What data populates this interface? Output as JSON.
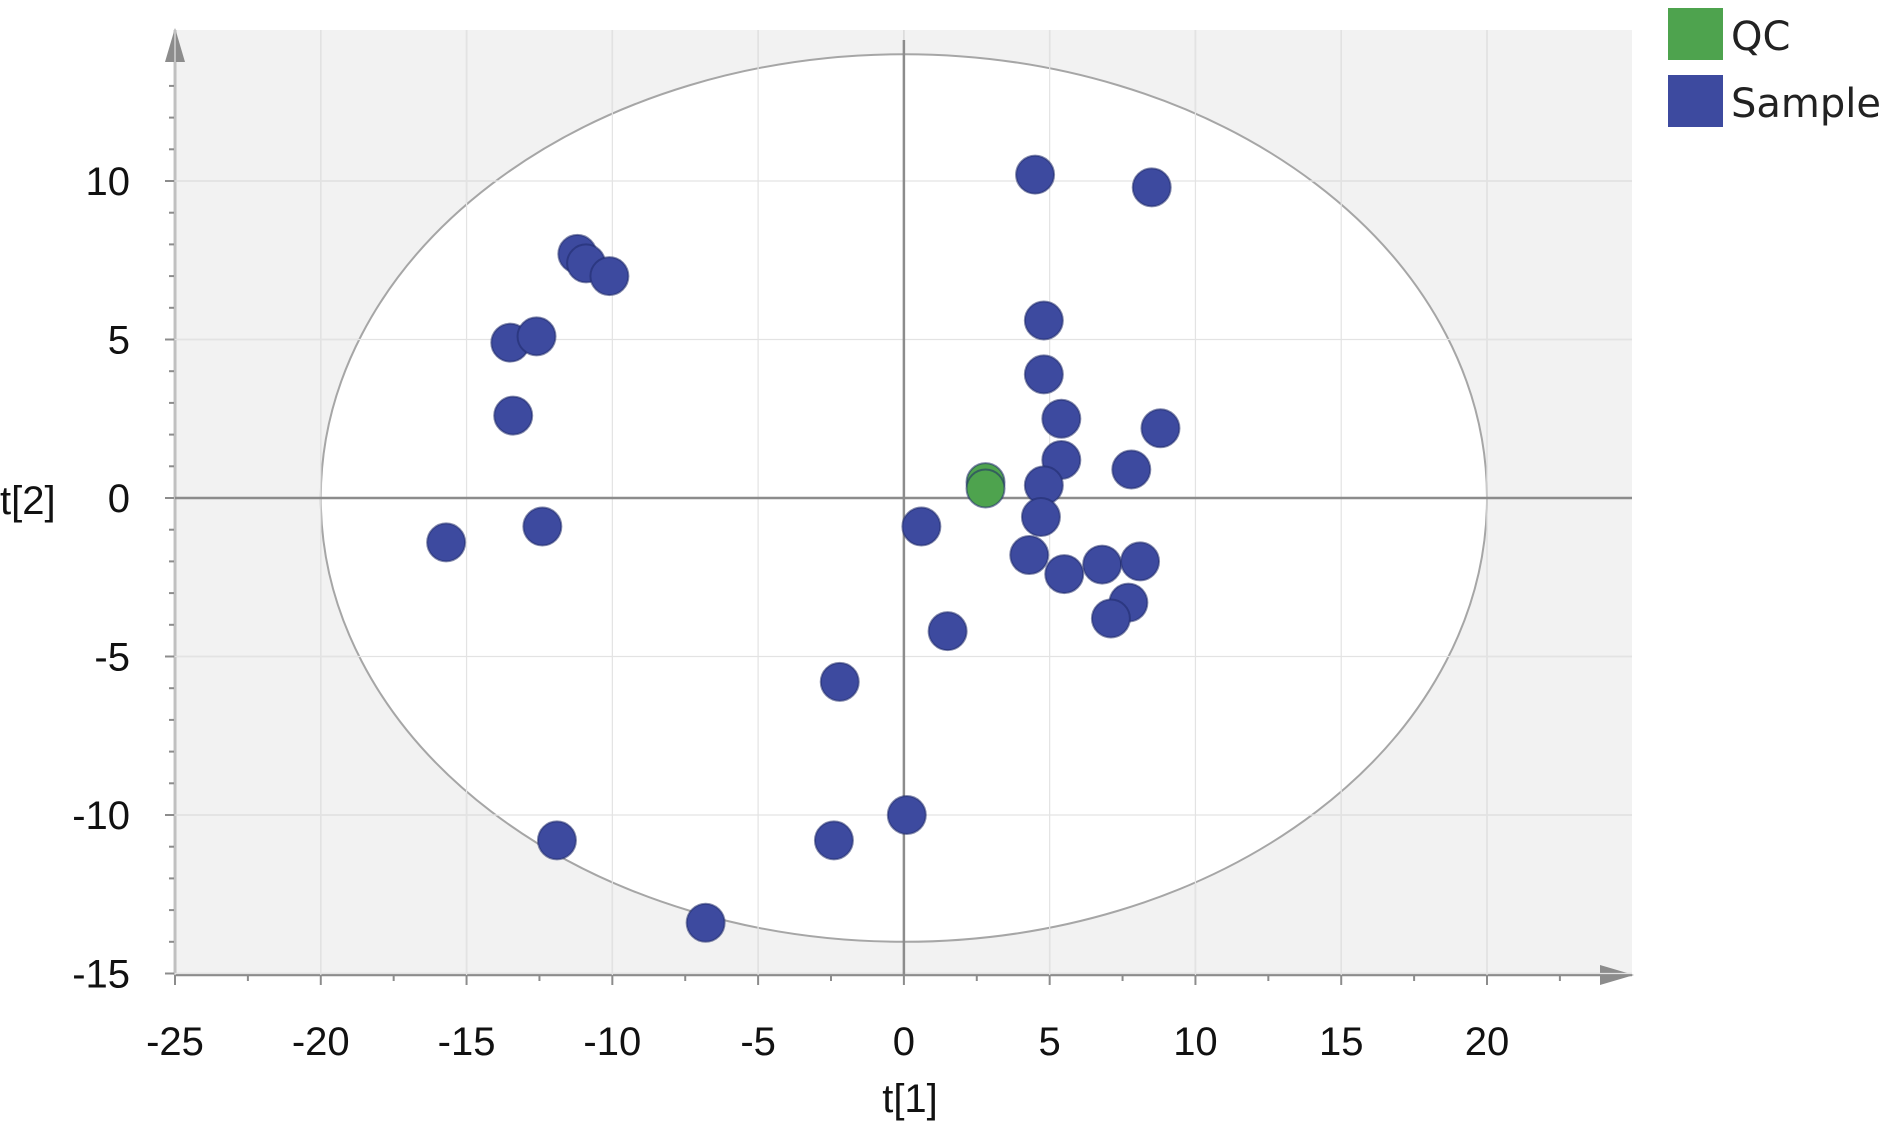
{
  "chart_data": {
    "type": "scatter",
    "title": "",
    "xlabel": "t[1]",
    "ylabel": "t[2]",
    "xlim": [
      -25,
      25
    ],
    "ylim": [
      -15,
      15
    ],
    "x_ticks": [
      -25,
      -20,
      -15,
      -10,
      -5,
      0,
      5,
      10,
      15,
      20
    ],
    "y_ticks": [
      -15,
      -10,
      -5,
      0,
      5,
      10
    ],
    "grid": true,
    "legend_position": "top-right, outside plot",
    "ellipse": {
      "center": [
        0,
        0
      ],
      "radius_x": 20,
      "radius_y": 14
    },
    "colors": {
      "plot_background": "#f2f2f2",
      "ellipse_fill": "#ffffff",
      "ellipse_stroke": "#a6a6a6",
      "grid": "#d9d9d9",
      "axis": "#8c8c8c"
    },
    "series": [
      {
        "name": "QC",
        "color": "#4ea34e",
        "points": [
          [
            2.8,
            0.5
          ],
          [
            2.8,
            0.3
          ]
        ]
      },
      {
        "name": "Sample",
        "color": "#3d4a9f",
        "points": [
          [
            4.5,
            10.2
          ],
          [
            8.5,
            9.8
          ],
          [
            -11.2,
            7.7
          ],
          [
            -10.9,
            7.4
          ],
          [
            -10.1,
            7.0
          ],
          [
            4.8,
            5.6
          ],
          [
            -13.5,
            4.9
          ],
          [
            -12.6,
            5.1
          ],
          [
            4.8,
            3.9
          ],
          [
            -13.4,
            2.6
          ],
          [
            5.4,
            2.5
          ],
          [
            8.8,
            2.2
          ],
          [
            5.4,
            1.2
          ],
          [
            7.8,
            0.9
          ],
          [
            4.8,
            0.4
          ],
          [
            0.6,
            -0.9
          ],
          [
            4.7,
            -0.6
          ],
          [
            -12.4,
            -0.9
          ],
          [
            -15.7,
            -1.4
          ],
          [
            4.3,
            -1.8
          ],
          [
            6.8,
            -2.1
          ],
          [
            8.1,
            -2.0
          ],
          [
            5.5,
            -2.4
          ],
          [
            7.7,
            -3.3
          ],
          [
            7.1,
            -3.8
          ],
          [
            1.5,
            -4.2
          ],
          [
            -2.2,
            -5.8
          ],
          [
            -11.9,
            -10.8
          ],
          [
            -2.4,
            -10.8
          ],
          [
            0.1,
            -10.0
          ],
          [
            -6.8,
            -13.4
          ]
        ]
      }
    ]
  }
}
